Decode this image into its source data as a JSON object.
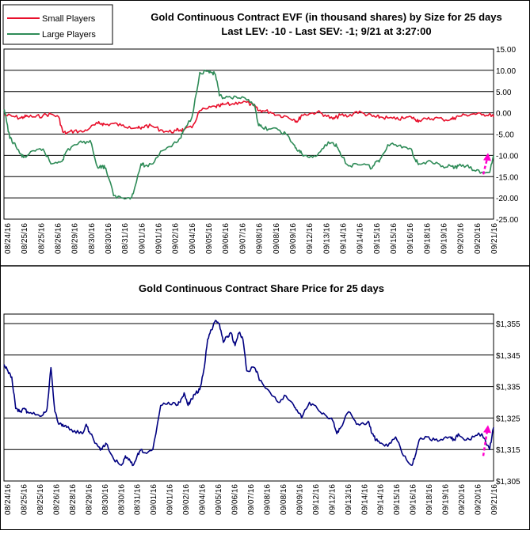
{
  "chart_data": [
    {
      "type": "line",
      "title": "Gold Continuous Contract EVF (in thousand shares) by Size for 25 days",
      "subtitle": "Last LEV: -10 - Last SEV: -1; 9/21 at 3:27:00",
      "ylim": [
        -25,
        15
      ],
      "ytick_labels": [
        "15.00",
        "10.00",
        "5.00",
        "0.00",
        "-5.00",
        "-10.00",
        "-15.00",
        "-20.00",
        "-25.00"
      ],
      "legend_position": "top-left",
      "series": [
        {
          "name": "Small Players",
          "color": "#e8102c",
          "x": [
            0,
            0.4,
            0.8,
            1.0,
            1.2,
            1.6,
            2.0,
            2.4,
            2.8,
            3.0,
            3.2,
            3.6,
            4.0,
            4.4,
            4.8,
            5.0,
            5.2,
            5.6,
            6.0,
            6.4,
            6.8,
            7.0,
            7.2,
            7.6,
            8.0,
            8.4,
            8.8,
            9.0,
            9.2,
            9.6,
            10.0,
            10.4,
            10.8,
            11.0,
            11.2,
            11.6,
            12.0,
            12.4,
            12.8,
            13.0,
            13.2,
            13.6,
            14.0,
            14.4,
            14.8,
            15.0,
            15.2,
            15.6,
            16.0,
            16.4,
            16.8,
            17.0,
            17.2,
            17.6,
            18.0,
            18.4,
            18.8,
            19.0,
            19.2,
            19.6,
            20.0,
            20.4,
            20.8,
            21.0,
            21.2,
            21.6,
            22.0,
            22.4,
            22.8,
            23.0,
            23.2,
            23.6,
            24.0,
            24.4,
            24.8,
            25.0
          ],
          "values": [
            -0.5,
            -0.8,
            -1.2,
            -1.0,
            -0.8,
            -1.0,
            -0.6,
            -0.3,
            -1.0,
            -4.5,
            -4.8,
            -4.2,
            -4.5,
            -3.5,
            -2.5,
            -2.5,
            -2.8,
            -2.5,
            -3.0,
            -3.2,
            -3.5,
            -3.8,
            -3.0,
            -3.2,
            -4.0,
            -4.5,
            -4.2,
            -4.0,
            -4.0,
            -3.5,
            0.5,
            1.0,
            1.5,
            1.5,
            2.0,
            2.0,
            2.5,
            2.5,
            1.5,
            0.5,
            0.5,
            0.2,
            -0.5,
            -0.8,
            -1.5,
            -2.0,
            -0.5,
            -0.2,
            0.2,
            -0.5,
            -1.5,
            -1.0,
            -0.5,
            -0.8,
            0.3,
            -0.2,
            -0.8,
            -1.0,
            -1.0,
            -1.2,
            -1.5,
            -1.3,
            -1.0,
            -1.5,
            -1.8,
            -1.5,
            -1.2,
            -1.5,
            -1.6,
            -1.2,
            -0.8,
            -0.5,
            -0.2,
            -0.5,
            -0.2,
            -1.0
          ]
        },
        {
          "name": "Large Players",
          "color": "#2e8b57",
          "x": [
            0,
            0.1,
            0.3,
            0.5,
            0.8,
            1.0,
            1.2,
            1.6,
            2.0,
            2.4,
            2.8,
            3.0,
            3.2,
            3.6,
            4.0,
            4.4,
            4.8,
            5.0,
            5.2,
            5.6,
            6.0,
            6.4,
            6.6,
            7.0,
            7.2,
            7.6,
            8.0,
            8.4,
            8.8,
            9.0,
            9.2,
            9.6,
            10.0,
            10.4,
            10.6,
            10.8,
            11.0,
            11.2,
            11.6,
            12.0,
            12.4,
            12.8,
            13.0,
            13.2,
            13.6,
            14.0,
            14.4,
            14.8,
            15.0,
            15.2,
            15.6,
            16.0,
            16.4,
            16.8,
            17.0,
            17.2,
            17.6,
            18.0,
            18.4,
            18.8,
            19.0,
            19.2,
            19.6,
            20.0,
            20.4,
            20.8,
            21.0,
            21.2,
            21.6,
            22.0,
            22.4,
            22.8,
            23.0,
            23.2,
            23.6,
            24.0,
            24.4,
            24.8,
            25.0
          ],
          "values": [
            0.5,
            -1.0,
            -6.0,
            -7.0,
            -9.5,
            -10.5,
            -10.0,
            -9.0,
            -8.5,
            -12.0,
            -11.5,
            -11.0,
            -9.0,
            -7.5,
            -7.0,
            -6.5,
            -13.0,
            -12.5,
            -13.0,
            -19.5,
            -20.0,
            -20.0,
            -19.0,
            -12.0,
            -12.5,
            -12.0,
            -9.0,
            -8.0,
            -7.0,
            -6.0,
            -4.0,
            -1.0,
            9.5,
            9.8,
            9.5,
            9.0,
            4.0,
            3.5,
            3.5,
            3.5,
            3.0,
            2.0,
            -3.0,
            -3.5,
            -3.8,
            -4.0,
            -5.0,
            -7.5,
            -9.0,
            -9.5,
            -10.5,
            -10.0,
            -7.5,
            -7.0,
            -8.0,
            -10.0,
            -12.5,
            -12.0,
            -12.0,
            -13.0,
            -11.5,
            -11.0,
            -7.5,
            -7.5,
            -8.0,
            -8.5,
            -11.0,
            -12.0,
            -11.5,
            -12.0,
            -12.5,
            -12.5,
            -13.0,
            -12.5,
            -12.5,
            -13.5,
            -14.0,
            -14.0,
            -10.0
          ]
        }
      ],
      "categories": [
        "08/24/16",
        "08/25/16",
        "08/25/16",
        "08/26/16",
        "08/29/16",
        "08/30/16",
        "08/30/16",
        "08/31/16",
        "09/01/16",
        "09/01/16",
        "09/02/16",
        "09/04/16",
        "09/05/16",
        "09/06/16",
        "09/07/16",
        "09/08/16",
        "09/08/16",
        "09/09/16",
        "09/12/16",
        "09/13/16",
        "09/14/16",
        "09/14/16",
        "09/15/16",
        "09/15/16",
        "09/16/16",
        "09/18/16",
        "09/19/16",
        "09/20/16",
        "09/20/16",
        "09/21/16"
      ],
      "arrow_color": "#ff00cc"
    },
    {
      "type": "line",
      "title": "Gold Continuous Contract Share Price for 25 days",
      "ylim": [
        1305,
        1358
      ],
      "ytick_labels": [
        "$1,355",
        "$1,345",
        "$1,335",
        "$1,325",
        "$1,315",
        "$1,305"
      ],
      "series": [
        {
          "color": "#000080",
          "x": [
            0,
            0.2,
            0.4,
            0.6,
            0.8,
            1.0,
            1.2,
            1.6,
            2.0,
            2.2,
            2.4,
            2.6,
            2.8,
            3.0,
            3.2,
            3.6,
            4.0,
            4.2,
            4.4,
            4.8,
            5.0,
            5.2,
            5.6,
            6.0,
            6.2,
            6.4,
            6.6,
            6.8,
            7.0,
            7.2,
            7.6,
            8.0,
            8.4,
            8.8,
            9.0,
            9.2,
            9.4,
            9.6,
            9.8,
            10.0,
            10.2,
            10.4,
            10.6,
            10.8,
            11.0,
            11.2,
            11.4,
            11.6,
            11.8,
            12.0,
            12.2,
            12.4,
            12.8,
            13.0,
            13.2,
            13.6,
            14.0,
            14.4,
            14.8,
            15.0,
            15.2,
            15.6,
            16.0,
            16.4,
            16.8,
            17.0,
            17.2,
            17.6,
            18.0,
            18.4,
            18.6,
            18.8,
            19.0,
            19.2,
            19.6,
            20.0,
            20.4,
            20.8,
            21.0,
            21.2,
            21.6,
            22.0,
            22.4,
            22.8,
            23.0,
            23.2,
            23.6,
            24.0,
            24.4,
            24.8,
            25.0
          ],
          "values": [
            1342,
            1340,
            1338,
            1328,
            1327,
            1328,
            1327,
            1326,
            1326,
            1328,
            1341,
            1327,
            1323,
            1323,
            1322,
            1321,
            1320,
            1323,
            1320,
            1316,
            1315,
            1317,
            1312,
            1310,
            1313,
            1312,
            1310,
            1313,
            1315,
            1314,
            1315,
            1329,
            1330,
            1329,
            1330,
            1333,
            1329,
            1331,
            1333,
            1334,
            1340,
            1350,
            1353,
            1356,
            1355,
            1349,
            1351,
            1352,
            1348,
            1352,
            1350,
            1340,
            1341,
            1338,
            1336,
            1333,
            1330,
            1332,
            1329,
            1327,
            1325,
            1330,
            1328,
            1326,
            1324,
            1320,
            1322,
            1327,
            1323,
            1323,
            1324,
            1320,
            1318,
            1317,
            1316,
            1319,
            1313,
            1310,
            1313,
            1318,
            1319,
            1318,
            1318,
            1319,
            1318,
            1320,
            1318,
            1319,
            1320,
            1315,
            1322
          ]
        }
      ],
      "categories": [
        "08/24/16",
        "08/25/16",
        "08/25/16",
        "08/26/16",
        "08/28/16",
        "08/29/16",
        "08/30/16",
        "08/30/16",
        "08/31/16",
        "09/01/16",
        "09/01/16",
        "09/02/16",
        "09/04/16",
        "09/05/16",
        "09/06/16",
        "09/07/16",
        "09/08/16",
        "09/08/16",
        "09/09/16",
        "09/12/16",
        "09/12/16",
        "09/13/16",
        "09/14/16",
        "09/14/16",
        "09/15/16",
        "09/16/16",
        "09/18/16",
        "09/19/16",
        "09/20/16",
        "09/20/16",
        "09/21/16"
      ],
      "arrow_color": "#ff00cc"
    }
  ]
}
